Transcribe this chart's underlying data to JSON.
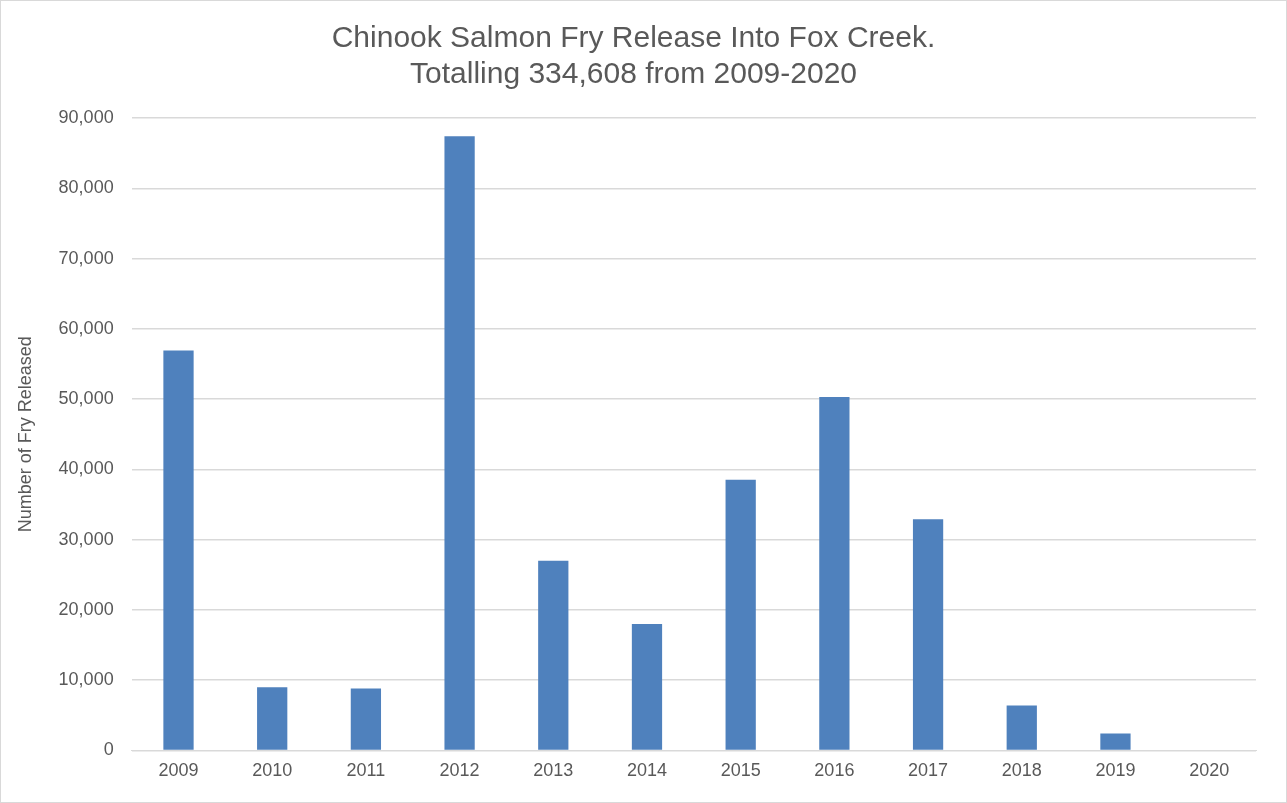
{
  "chart_data": {
    "type": "bar",
    "title": "Chinook Salmon Fry Release Into Fox Creek.\nTotalling 334,608 from 2009-2020",
    "ylabel": "Number of Fry Released",
    "categories": [
      "2009",
      "2010",
      "2011",
      "2012",
      "2013",
      "2014",
      "2015",
      "2016",
      "2017",
      "2018",
      "2019",
      "2020"
    ],
    "values": [
      56900,
      9000,
      8800,
      87400,
      27000,
      18000,
      38500,
      50300,
      32900,
      6400,
      2400,
      0
    ],
    "color": "#4f81bd",
    "ylim": [
      0,
      90000
    ],
    "yticks": [
      0,
      {
        "value": 10000,
        "label": "10,000"
      },
      {
        "value": 20000,
        "label": "20,000"
      },
      {
        "value": 30000,
        "label": "30,000"
      },
      {
        "value": 40000,
        "label": "40,000"
      },
      {
        "value": 50000,
        "label": "50,000"
      },
      {
        "value": 60000,
        "label": "60,000"
      },
      {
        "value": 70000,
        "label": "70,000"
      },
      {
        "value": 80000,
        "label": "80,000"
      },
      {
        "value": 90000,
        "label": "90,000"
      }
    ],
    "grid": "y",
    "legend": false
  }
}
